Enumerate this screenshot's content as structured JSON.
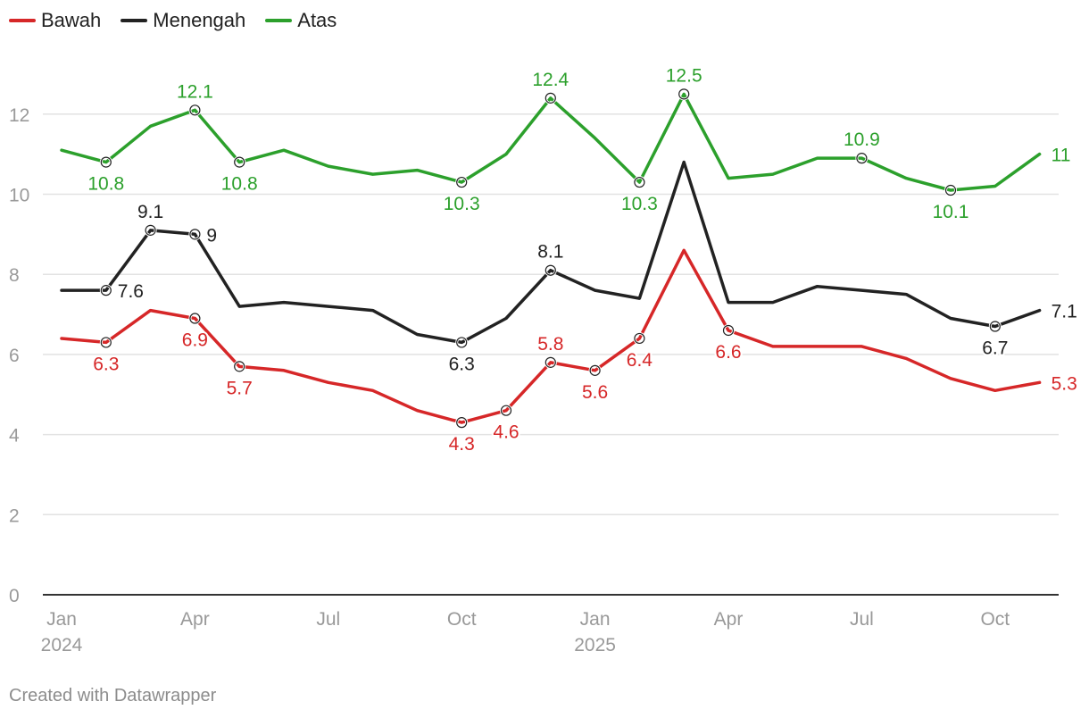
{
  "footer": "Created with Datawrapper",
  "chart_data": {
    "type": "line",
    "title": "",
    "xlabel": "",
    "ylabel": "",
    "ylim": [
      0,
      13
    ],
    "yticks": [
      0,
      2,
      4,
      6,
      8,
      10,
      12
    ],
    "grid": true,
    "legend_position": "top-left",
    "x": [
      "2024-01",
      "2024-02",
      "2024-03",
      "2024-04",
      "2024-05",
      "2024-06",
      "2024-07",
      "2024-08",
      "2024-09",
      "2024-10",
      "2024-11",
      "2024-12",
      "2025-01",
      "2025-02",
      "2025-03",
      "2025-04",
      "2025-05",
      "2025-06",
      "2025-07",
      "2025-08",
      "2025-09",
      "2025-10",
      "2025-11"
    ],
    "xticks": [
      {
        "x": "2024-01",
        "label": "Jan",
        "year": "2024"
      },
      {
        "x": "2024-04",
        "label": "Apr",
        "year": ""
      },
      {
        "x": "2024-07",
        "label": "Jul",
        "year": ""
      },
      {
        "x": "2024-10",
        "label": "Oct",
        "year": ""
      },
      {
        "x": "2025-01",
        "label": "Jan",
        "year": "2025"
      },
      {
        "x": "2025-04",
        "label": "Apr",
        "year": ""
      },
      {
        "x": "2025-07",
        "label": "Jul",
        "year": ""
      },
      {
        "x": "2025-10",
        "label": "Oct",
        "year": ""
      }
    ],
    "series": [
      {
        "name": "Bawah",
        "color": "#d62728",
        "values": [
          6.4,
          6.3,
          7.1,
          6.9,
          5.7,
          5.6,
          5.3,
          5.1,
          4.6,
          4.3,
          4.6,
          5.8,
          5.6,
          6.4,
          8.6,
          6.6,
          6.2,
          6.2,
          6.2,
          5.9,
          5.4,
          5.1,
          5.3
        ],
        "labels": [
          {
            "i": 1,
            "text": "6.3",
            "pos": "below"
          },
          {
            "i": 3,
            "text": "6.9",
            "pos": "below"
          },
          {
            "i": 4,
            "text": "5.7",
            "pos": "below"
          },
          {
            "i": 9,
            "text": "4.3",
            "pos": "below"
          },
          {
            "i": 10,
            "text": "4.6",
            "pos": "below"
          },
          {
            "i": 11,
            "text": "5.8",
            "pos": "above"
          },
          {
            "i": 12,
            "text": "5.6",
            "pos": "below"
          },
          {
            "i": 13,
            "text": "6.4",
            "pos": "below"
          },
          {
            "i": 15,
            "text": "6.6",
            "pos": "below"
          },
          {
            "i": 22,
            "text": "5.3",
            "pos": "right"
          }
        ]
      },
      {
        "name": "Menengah",
        "color": "#222222",
        "values": [
          7.6,
          7.6,
          9.1,
          9.0,
          7.2,
          7.3,
          7.2,
          7.1,
          6.5,
          6.3,
          6.9,
          8.1,
          7.6,
          7.4,
          10.8,
          7.3,
          7.3,
          7.7,
          7.6,
          7.5,
          6.9,
          6.7,
          7.1
        ],
        "labels": [
          {
            "i": 1,
            "text": "7.6",
            "pos": "right"
          },
          {
            "i": 2,
            "text": "9.1",
            "pos": "above"
          },
          {
            "i": 3,
            "text": "9",
            "pos": "right"
          },
          {
            "i": 9,
            "text": "6.3",
            "pos": "below"
          },
          {
            "i": 11,
            "text": "8.1",
            "pos": "above"
          },
          {
            "i": 21,
            "text": "6.7",
            "pos": "below"
          },
          {
            "i": 22,
            "text": "7.1",
            "pos": "right"
          }
        ]
      },
      {
        "name": "Atas",
        "color": "#2ca02c",
        "values": [
          11.1,
          10.8,
          11.7,
          12.1,
          10.8,
          11.1,
          10.7,
          10.5,
          10.6,
          10.3,
          11.0,
          12.4,
          11.4,
          10.3,
          12.5,
          10.4,
          10.5,
          10.9,
          10.9,
          10.4,
          10.1,
          10.2,
          11.0
        ],
        "labels": [
          {
            "i": 1,
            "text": "10.8",
            "pos": "below"
          },
          {
            "i": 3,
            "text": "12.1",
            "pos": "above"
          },
          {
            "i": 4,
            "text": "10.8",
            "pos": "below"
          },
          {
            "i": 9,
            "text": "10.3",
            "pos": "below"
          },
          {
            "i": 11,
            "text": "12.4",
            "pos": "above"
          },
          {
            "i": 13,
            "text": "10.3",
            "pos": "below"
          },
          {
            "i": 14,
            "text": "12.5",
            "pos": "above"
          },
          {
            "i": 18,
            "text": "10.9",
            "pos": "above"
          },
          {
            "i": 20,
            "text": "10.1",
            "pos": "below"
          },
          {
            "i": 22,
            "text": "11",
            "pos": "right"
          }
        ]
      }
    ]
  }
}
